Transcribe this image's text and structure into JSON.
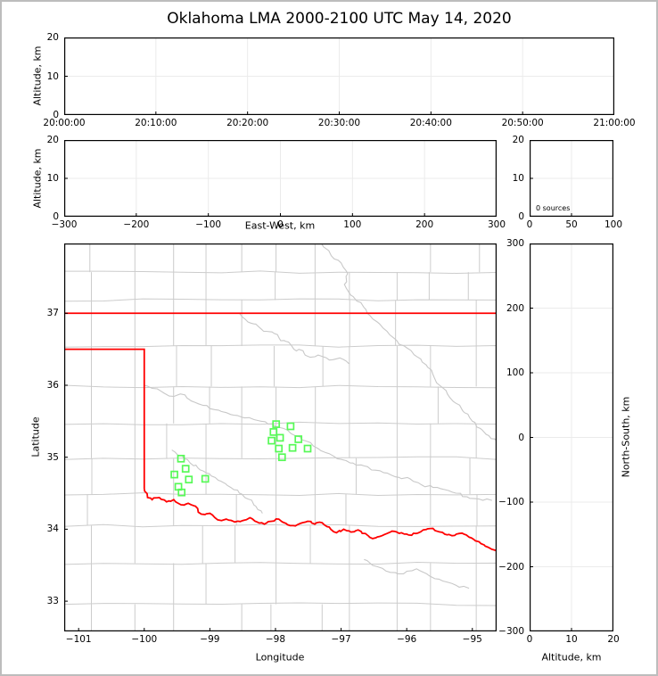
{
  "title": "Oklahoma LMA 2000-2100 UTC May 14, 2020",
  "colors": {
    "frame": "#bdbdbd",
    "background": "#ffffff",
    "axis": "#000000",
    "grid": "#ebebeb",
    "county_line": "#cccccc",
    "river_line": "#c8c8c8",
    "state_border": "#ff0000",
    "station_marker": "#57f957",
    "text": "#000000"
  },
  "chart_data": [
    {
      "id": "time_altitude",
      "type": "scatter",
      "ylabel": "Altitude, km",
      "ylim": [
        0,
        20
      ],
      "yticks": [
        0,
        10,
        20
      ],
      "xtick_labels": [
        "20:00:00",
        "20:10:00",
        "20:20:00",
        "20:30:00",
        "20:40:00",
        "20:50:00",
        "21:00:00"
      ],
      "points": []
    },
    {
      "id": "ew_altitude",
      "type": "scatter",
      "xlabel": "East-West, km",
      "ylabel": "Altitude, km",
      "xlim": [
        -300,
        300
      ],
      "xticks": [
        -300,
        -200,
        -100,
        0,
        100,
        200,
        300
      ],
      "ylim": [
        0,
        20
      ],
      "yticks": [
        0,
        10,
        20
      ],
      "points": []
    },
    {
      "id": "altitude_histogram",
      "type": "line",
      "annotation": "0 sources",
      "xlim": [
        0,
        100
      ],
      "xticks": [
        0,
        50,
        100
      ],
      "ylim": [
        0,
        20
      ],
      "yticks": [
        0,
        10,
        20
      ],
      "points": []
    },
    {
      "id": "plan_view_map",
      "type": "scatter",
      "xlabel": "Longitude",
      "ylabel": "Latitude",
      "xlim": [
        -101.22,
        -94.63
      ],
      "ylim": [
        32.58,
        37.97
      ],
      "xticks": [
        -101,
        -100,
        -99,
        -98,
        -97,
        -96,
        -95
      ],
      "yticks": [
        33,
        34,
        35,
        36,
        37
      ],
      "stations_lon_lat": [
        [
          -97.99,
          35.46
        ],
        [
          -97.77,
          35.43
        ],
        [
          -98.03,
          35.35
        ],
        [
          -97.93,
          35.27
        ],
        [
          -98.06,
          35.23
        ],
        [
          -97.65,
          35.25
        ],
        [
          -97.74,
          35.13
        ],
        [
          -97.95,
          35.12
        ],
        [
          -97.51,
          35.12
        ],
        [
          -97.9,
          35.0
        ],
        [
          -99.44,
          34.98
        ],
        [
          -99.37,
          34.84
        ],
        [
          -99.54,
          34.76
        ],
        [
          -99.32,
          34.69
        ],
        [
          -99.07,
          34.7
        ],
        [
          -99.48,
          34.59
        ],
        [
          -99.43,
          34.51
        ]
      ],
      "oklahoma_border": {
        "north_lat": 37.0,
        "panhandle_south_lat": 36.5,
        "panhandle_east_lon": -100.0,
        "red_river_lon_lat": [
          [
            -100.0,
            34.56
          ],
          [
            -99.95,
            34.44
          ],
          [
            -99.88,
            34.41
          ],
          [
            -99.77,
            34.44
          ],
          [
            -99.66,
            34.38
          ],
          [
            -99.55,
            34.41
          ],
          [
            -99.44,
            34.34
          ],
          [
            -99.33,
            34.36
          ],
          [
            -99.22,
            34.32
          ],
          [
            -99.13,
            34.21
          ],
          [
            -99.0,
            34.22
          ],
          [
            -98.88,
            34.13
          ],
          [
            -98.75,
            34.14
          ],
          [
            -98.62,
            34.1
          ],
          [
            -98.5,
            34.12
          ],
          [
            -98.39,
            34.16
          ],
          [
            -98.28,
            34.1
          ],
          [
            -98.17,
            34.07
          ],
          [
            -98.06,
            34.11
          ],
          [
            -97.95,
            34.14
          ],
          [
            -97.84,
            34.08
          ],
          [
            -97.73,
            34.05
          ],
          [
            -97.62,
            34.08
          ],
          [
            -97.51,
            34.11
          ],
          [
            -97.4,
            34.07
          ],
          [
            -97.29,
            34.09
          ],
          [
            -97.18,
            34.03
          ],
          [
            -97.07,
            33.95
          ],
          [
            -96.96,
            34.0
          ],
          [
            -96.85,
            33.96
          ],
          [
            -96.74,
            33.99
          ],
          [
            -96.63,
            33.94
          ],
          [
            -96.52,
            33.87
          ],
          [
            -96.41,
            33.9
          ],
          [
            -96.3,
            33.94
          ],
          [
            -96.19,
            33.97
          ],
          [
            -96.08,
            33.95
          ],
          [
            -95.97,
            33.92
          ],
          [
            -95.86,
            33.94
          ],
          [
            -95.75,
            33.99
          ],
          [
            -95.64,
            34.01
          ],
          [
            -95.53,
            33.97
          ],
          [
            -95.42,
            33.93
          ],
          [
            -95.31,
            33.91
          ],
          [
            -95.2,
            33.94
          ],
          [
            -95.09,
            33.92
          ],
          [
            -94.98,
            33.86
          ],
          [
            -94.87,
            33.8
          ],
          [
            -94.76,
            33.75
          ],
          [
            -94.63,
            33.7
          ]
        ]
      },
      "rivers_lon_lat": [
        [
          [
            -98.55,
            37.0
          ],
          [
            -98.42,
            36.88
          ],
          [
            -98.3,
            36.85
          ],
          [
            -98.18,
            36.75
          ],
          [
            -98.02,
            36.72
          ],
          [
            -97.92,
            36.62
          ],
          [
            -97.8,
            36.6
          ],
          [
            -97.72,
            36.5
          ],
          [
            -97.58,
            36.48
          ],
          [
            -97.5,
            36.4
          ],
          [
            -97.35,
            36.42
          ],
          [
            -97.18,
            36.35
          ],
          [
            -97.02,
            36.38
          ],
          [
            -96.88,
            36.3
          ]
        ],
        [
          [
            -100.0,
            36.0
          ],
          [
            -99.8,
            35.95
          ],
          [
            -99.62,
            35.85
          ],
          [
            -99.45,
            35.88
          ],
          [
            -99.28,
            35.78
          ],
          [
            -99.1,
            35.72
          ],
          [
            -98.92,
            35.66
          ],
          [
            -98.75,
            35.62
          ],
          [
            -98.58,
            35.58
          ],
          [
            -98.4,
            35.55
          ],
          [
            -98.22,
            35.5
          ],
          [
            -98.05,
            35.46
          ],
          [
            -97.88,
            35.4
          ],
          [
            -97.7,
            35.3
          ],
          [
            -97.52,
            35.22
          ],
          [
            -97.35,
            35.12
          ],
          [
            -97.18,
            35.05
          ],
          [
            -97.0,
            34.97
          ],
          [
            -96.82,
            34.92
          ],
          [
            -96.65,
            34.88
          ],
          [
            -96.48,
            34.82
          ],
          [
            -96.3,
            34.78
          ],
          [
            -96.12,
            34.72
          ],
          [
            -95.95,
            34.7
          ],
          [
            -95.78,
            34.62
          ],
          [
            -95.6,
            34.58
          ],
          [
            -95.42,
            34.55
          ],
          [
            -95.25,
            34.5
          ],
          [
            -95.08,
            34.45
          ],
          [
            -94.9,
            34.42
          ],
          [
            -94.7,
            34.4
          ]
        ],
        [
          [
            -99.58,
            35.1
          ],
          [
            -99.42,
            35.02
          ],
          [
            -99.3,
            34.92
          ],
          [
            -99.18,
            34.85
          ],
          [
            -99.05,
            34.78
          ],
          [
            -98.92,
            34.72
          ],
          [
            -98.8,
            34.65
          ],
          [
            -98.68,
            34.58
          ],
          [
            -98.55,
            34.5
          ],
          [
            -98.42,
            34.42
          ],
          [
            -98.3,
            34.32
          ],
          [
            -98.2,
            34.22
          ]
        ],
        [
          [
            -97.3,
            37.97
          ],
          [
            -97.15,
            37.8
          ],
          [
            -97.0,
            37.7
          ],
          [
            -96.9,
            37.55
          ],
          [
            -96.95,
            37.4
          ],
          [
            -96.85,
            37.25
          ],
          [
            -96.7,
            37.15
          ],
          [
            -96.6,
            37.0
          ],
          [
            -96.45,
            36.88
          ],
          [
            -96.3,
            36.75
          ],
          [
            -96.15,
            36.62
          ],
          [
            -96.0,
            36.52
          ],
          [
            -95.85,
            36.4
          ],
          [
            -95.7,
            36.28
          ],
          [
            -95.6,
            36.15
          ],
          [
            -95.5,
            36.0
          ],
          [
            -95.38,
            35.88
          ],
          [
            -95.25,
            35.75
          ],
          [
            -95.12,
            35.62
          ],
          [
            -95.0,
            35.5
          ],
          [
            -94.88,
            35.4
          ],
          [
            -94.75,
            35.3
          ],
          [
            -94.63,
            35.22
          ]
        ],
        [
          [
            -96.65,
            33.58
          ],
          [
            -96.45,
            33.48
          ],
          [
            -96.25,
            33.4
          ],
          [
            -96.05,
            33.38
          ],
          [
            -95.85,
            33.45
          ],
          [
            -95.65,
            33.35
          ],
          [
            -95.45,
            33.28
          ],
          [
            -95.25,
            33.22
          ],
          [
            -95.05,
            33.18
          ]
        ]
      ]
    },
    {
      "id": "ns_altitude",
      "type": "scatter",
      "xlabel": "Altitude, km",
      "ylabel": "North-South, km",
      "xlim": [
        0,
        20
      ],
      "xticks": [
        0,
        10,
        20
      ],
      "ylim": [
        -300,
        300
      ],
      "yticks": [
        -300,
        -200,
        -100,
        0,
        100,
        200,
        300
      ],
      "points": []
    }
  ]
}
